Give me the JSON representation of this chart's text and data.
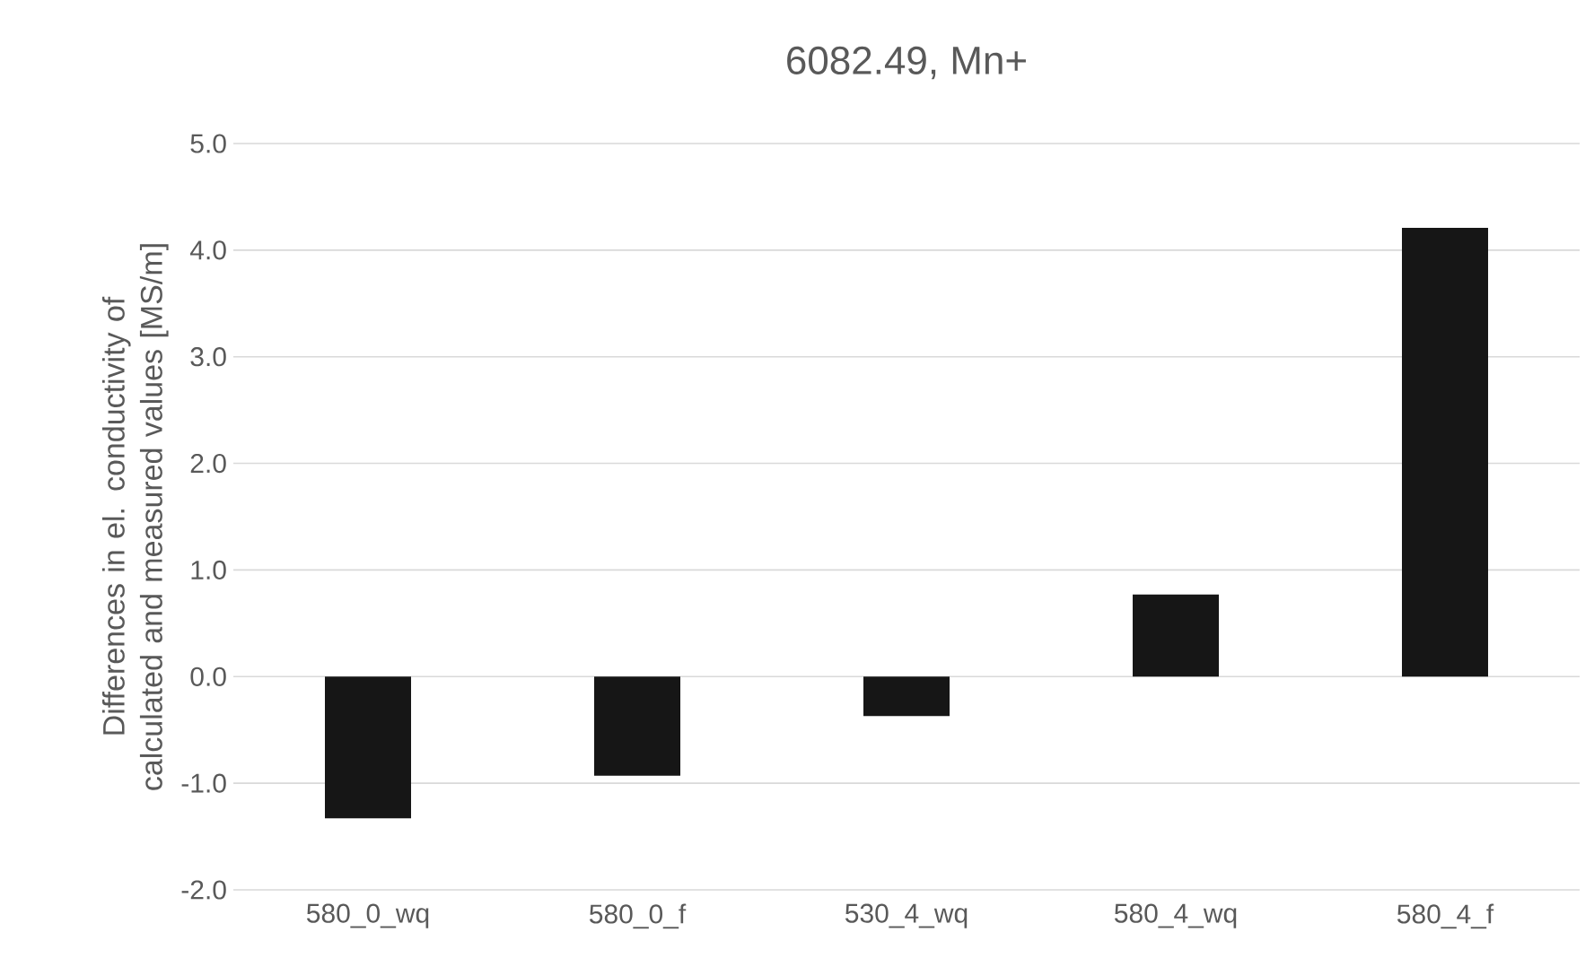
{
  "chart_data": {
    "type": "bar",
    "title": "6082.49, Mn+",
    "ylabel": "Differences in el. conductivity of calculated and measured values [MS/m]",
    "categories": [
      "580_0_wq",
      "580_0_f",
      "530_4_wq",
      "580_4_wq",
      "580_4_f"
    ],
    "values": [
      -1.33,
      -0.93,
      -0.37,
      0.77,
      4.21
    ],
    "color": "#161616",
    "ylim": [
      -2,
      5
    ],
    "yticks": [
      {
        "value": -2,
        "label": "-2.0"
      },
      {
        "value": -1,
        "label": "-1.0"
      },
      {
        "value": 0,
        "label": "0.0"
      },
      {
        "value": 1,
        "label": "1.0"
      },
      {
        "value": 2,
        "label": "2.0"
      },
      {
        "value": 3,
        "label": "3.0"
      },
      {
        "value": 4,
        "label": "4.0"
      },
      {
        "value": 5,
        "label": "5.0"
      }
    ],
    "grid": "y"
  }
}
